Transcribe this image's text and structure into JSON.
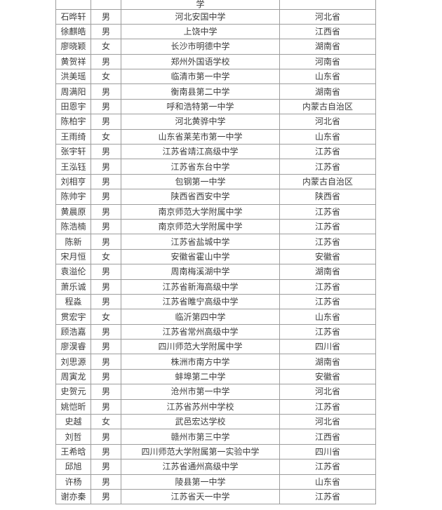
{
  "table": {
    "border_color": "#9d9d9d",
    "text_color": "#3d3d3d",
    "background_color": "#ffffff",
    "columns": [
      "name",
      "gender",
      "school",
      "province"
    ],
    "partial_top_row": {
      "name": "",
      "gender": "",
      "school": "学",
      "province": ""
    },
    "rows": [
      {
        "name": "石晔轩",
        "gender": "男",
        "school": "河北安国中学",
        "province": "河北省"
      },
      {
        "name": "徐麒皓",
        "gender": "男",
        "school": "上饶中学",
        "province": "江西省"
      },
      {
        "name": "廖晓颖",
        "gender": "女",
        "school": "长沙市明德中学",
        "province": "湖南省"
      },
      {
        "name": "黄贺祥",
        "gender": "男",
        "school": "郑州外国语学校",
        "province": "河南省"
      },
      {
        "name": "洪美瑶",
        "gender": "女",
        "school": "临清市第一中学",
        "province": "山东省"
      },
      {
        "name": "周满阳",
        "gender": "男",
        "school": "衡南县第二中学",
        "province": "湖南省"
      },
      {
        "name": "田恩宇",
        "gender": "男",
        "school": "呼和浩特第一中学",
        "province": "内蒙古自治区"
      },
      {
        "name": "陈柏宇",
        "gender": "男",
        "school": "河北黄骅中学",
        "province": "河北省"
      },
      {
        "name": "王雨绮",
        "gender": "女",
        "school": "山东省莱芜市第一中学",
        "province": "山东省"
      },
      {
        "name": "张宇轩",
        "gender": "男",
        "school": "江苏省靖江高级中学",
        "province": "江苏省"
      },
      {
        "name": "王泓钰",
        "gender": "男",
        "school": "江苏省东台中学",
        "province": "江苏省"
      },
      {
        "name": "刘相亨",
        "gender": "男",
        "school": "包钢第一中学",
        "province": "内蒙古自治区"
      },
      {
        "name": "陈帅宇",
        "gender": "男",
        "school": "陕西省西安中学",
        "province": "陕西省"
      },
      {
        "name": "黄晨原",
        "gender": "男",
        "school": "南京师范大学附属中学",
        "province": "江苏省"
      },
      {
        "name": "陈浩楠",
        "gender": "男",
        "school": "南京师范大学附属中学",
        "province": "江苏省"
      },
      {
        "name": "陈新",
        "gender": "男",
        "school": "江苏省盐城中学",
        "province": "江苏省"
      },
      {
        "name": "宋月恒",
        "gender": "女",
        "school": "安徽省霍山中学",
        "province": "安徽省"
      },
      {
        "name": "袁溢伦",
        "gender": "男",
        "school": "周南梅溪湖中学",
        "province": "湖南省"
      },
      {
        "name": "萧乐诚",
        "gender": "男",
        "school": "江苏省新海高级中学",
        "province": "江苏省"
      },
      {
        "name": "程淼",
        "gender": "男",
        "school": "江苏省睢宁高级中学",
        "province": "江苏省"
      },
      {
        "name": "贯宏宇",
        "gender": "女",
        "school": "临沂第四中学",
        "province": "山东省"
      },
      {
        "name": "顾浩嘉",
        "gender": "男",
        "school": "江苏省常州高级中学",
        "province": "江苏省"
      },
      {
        "name": "廖淏睿",
        "gender": "男",
        "school": "四川师范大学附属中学",
        "province": "四川省"
      },
      {
        "name": "刘思源",
        "gender": "男",
        "school": "株洲市南方中学",
        "province": "湖南省"
      },
      {
        "name": "周寅龙",
        "gender": "男",
        "school": "蚌埠第二中学",
        "province": "安徽省"
      },
      {
        "name": "史贺元",
        "gender": "男",
        "school": "沧州市第一中学",
        "province": "河北省"
      },
      {
        "name": "姚恺昕",
        "gender": "男",
        "school": "江苏省苏州中学校",
        "province": "江苏省"
      },
      {
        "name": "史越",
        "gender": "女",
        "school": "武邑宏达学校",
        "province": "河北省"
      },
      {
        "name": "刘哲",
        "gender": "男",
        "school": "赣州市第三中学",
        "province": "江西省"
      },
      {
        "name": "王希晗",
        "gender": "男",
        "school": "四川师范大学附属第一实验中学",
        "province": "四川省"
      },
      {
        "name": "邱旭",
        "gender": "男",
        "school": "江苏省通州高级中学",
        "province": "江苏省"
      },
      {
        "name": "许杨",
        "gender": "男",
        "school": "陵县第一中学",
        "province": "山东省"
      },
      {
        "name": "谢亦秦",
        "gender": "男",
        "school": "江苏省天一中学",
        "province": "江苏省"
      }
    ]
  }
}
